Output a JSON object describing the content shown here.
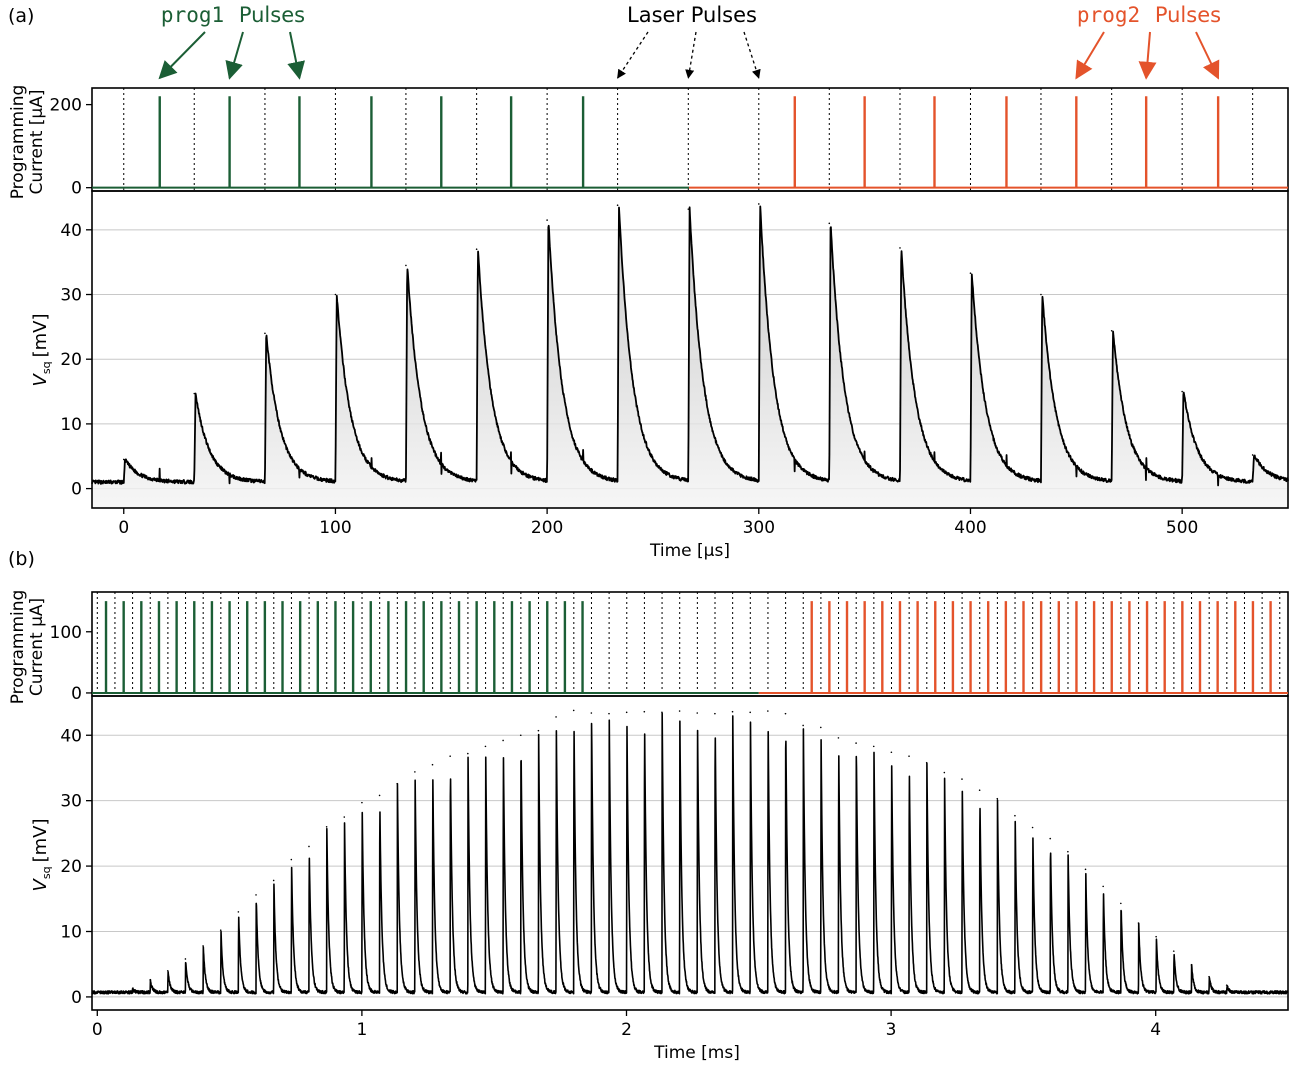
{
  "chart_data": [
    {
      "panel_label": "(a)",
      "type": "line",
      "annotations": {
        "prog1_code": "prog1",
        "prog2_code": "prog2",
        "pulses_word": "Pulses",
        "laser_label": "Laser Pulses",
        "prog1_color": "#1b5e35",
        "prog2_color": "#e4532b"
      },
      "current_panel": {
        "ylabel_line1": "Programming",
        "ylabel_line2": "Current [µA]",
        "ylim": [
          -8,
          240
        ],
        "yticks": [
          0,
          200
        ],
        "prog1_pulses_x": [
          17,
          50,
          83,
          117,
          150,
          183,
          217
        ],
        "prog2_pulses_x": [
          317,
          350,
          383,
          417,
          450,
          483,
          517
        ],
        "pulse_amplitude": 220,
        "baseline_switch_x": 267,
        "laser_pulses_x": [
          0,
          33.3,
          66.7,
          100,
          133.3,
          166.7,
          200,
          233.3,
          266.7,
          300,
          333.3,
          366.7,
          400,
          433.3,
          466.7,
          500,
          533.3
        ]
      },
      "voltage_panel": {
        "ylabel": "V",
        "ylabel_sub": "sq",
        "ylabel_unit": "[mV]",
        "xlabel": "Time [µs]",
        "xlim": [
          -15,
          550
        ],
        "ylim": [
          -3,
          46
        ],
        "xticks": [
          0,
          100,
          200,
          300,
          400,
          500
        ],
        "yticks": [
          0,
          10,
          20,
          30,
          40
        ],
        "grid": "horizontal",
        "baseline": 1,
        "peaks": [
          {
            "x": 0,
            "y": 4.5
          },
          {
            "x": 33.3,
            "y": 14.7
          },
          {
            "x": 66.7,
            "y": 24
          },
          {
            "x": 100,
            "y": 30
          },
          {
            "x": 133.3,
            "y": 34.5
          },
          {
            "x": 166.7,
            "y": 37
          },
          {
            "x": 200,
            "y": 41.5
          },
          {
            "x": 233.3,
            "y": 43.8
          },
          {
            "x": 266.7,
            "y": 43.2
          },
          {
            "x": 300,
            "y": 44
          },
          {
            "x": 333.3,
            "y": 41
          },
          {
            "x": 366.7,
            "y": 37.2
          },
          {
            "x": 400,
            "y": 33.3
          },
          {
            "x": 433.3,
            "y": 30
          },
          {
            "x": 466.7,
            "y": 24.4
          },
          {
            "x": 500,
            "y": 15
          },
          {
            "x": 533.3,
            "y": 5.2
          }
        ]
      }
    },
    {
      "panel_label": "(b)",
      "type": "line",
      "current_panel": {
        "ylabel_line1": "Programming",
        "ylabel_line2": "Current µA]",
        "ylim": [
          -5,
          165
        ],
        "yticks": [
          0,
          100
        ],
        "pulse_amplitude": 150,
        "pulse_period_ms": 0.0667,
        "prog1_first_ms": 0.033,
        "prog1_count": 28,
        "prog2_first_ms": 2.7,
        "prog2_count": 27,
        "baseline_switch_ms": 2.5,
        "laser_first_ms": 0,
        "laser_count": 68
      },
      "voltage_panel": {
        "ylabel": "V",
        "ylabel_sub": "sq",
        "ylabel_unit": "[mV]",
        "xlabel": "Time [ms]",
        "xlim": [
          -0.02,
          4.5
        ],
        "ylim": [
          -2,
          46
        ],
        "xticks": [
          0,
          1,
          2,
          3,
          4
        ],
        "yticks": [
          0,
          10,
          20,
          30,
          40
        ],
        "grid": "horizontal",
        "baseline": 0.7,
        "peak_period_ms": 0.0667,
        "peak_first_ms": 0.133,
        "peaks_y": [
          1.2,
          2.6,
          4,
          5.8,
          7.8,
          10.2,
          13,
          15.6,
          17.8,
          21,
          23,
          26,
          27.5,
          29.7,
          30.8,
          32.6,
          34.4,
          35.5,
          36.8,
          37.2,
          38.3,
          39.2,
          40,
          40.7,
          42.8,
          43.8,
          43.4,
          43.3,
          43.5,
          43.6,
          43.5,
          43.7,
          43.4,
          43.3,
          43.6,
          43.5,
          43.7,
          43.3,
          41.5,
          41.2,
          39.6,
          38.8,
          38.3,
          37.4,
          36.8,
          35.8,
          34.3,
          33.3,
          31.6,
          30.3,
          27.7,
          25.9,
          24.2,
          22.2,
          19.5,
          16.9,
          14.3,
          11.3,
          9.2,
          7,
          4.9,
          3.1,
          1.8
        ]
      }
    }
  ]
}
